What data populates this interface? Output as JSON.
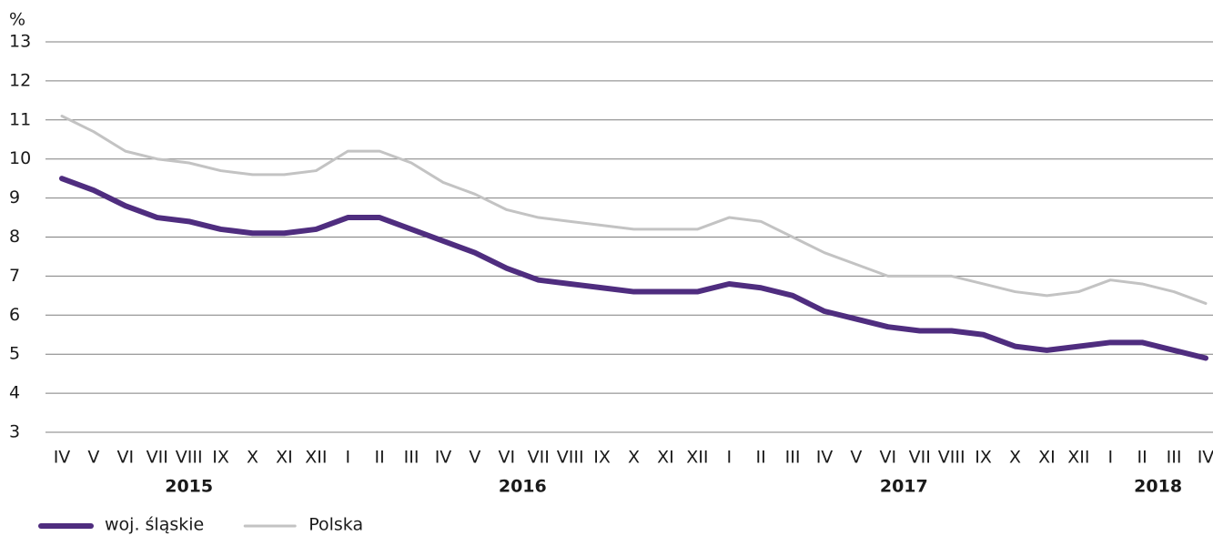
{
  "chart_data": {
    "type": "line",
    "y_unit": "%",
    "categories": [
      "IV",
      "V",
      "VI",
      "VII",
      "VIII",
      "IX",
      "X",
      "XI",
      "XII",
      "I",
      "II",
      "III",
      "IV",
      "V",
      "VI",
      "VII",
      "VIII",
      "IX",
      "X",
      "XI",
      "XII",
      "I",
      "II",
      "III",
      "IV",
      "V",
      "VI",
      "VII",
      "VIII",
      "IX",
      "X",
      "XI",
      "XII",
      "I",
      "II",
      "III",
      "IV"
    ],
    "year_labels": [
      "2015",
      "2016",
      "2017",
      "2018"
    ],
    "series": [
      {
        "name": "woj. śląskie",
        "color": "#4f2d7f",
        "width": 6,
        "values": [
          9.5,
          9.2,
          8.8,
          8.5,
          8.4,
          8.2,
          8.1,
          8.1,
          8.2,
          8.5,
          8.5,
          8.2,
          7.9,
          7.6,
          7.2,
          6.9,
          6.8,
          6.7,
          6.6,
          6.6,
          6.6,
          6.8,
          6.7,
          6.5,
          6.1,
          5.9,
          5.7,
          5.6,
          5.6,
          5.5,
          5.2,
          5.1,
          5.2,
          5.3,
          5.3,
          5.1,
          4.9
        ]
      },
      {
        "name": "Polska",
        "color": "#c3c3c3",
        "width": 3,
        "values": [
          11.1,
          10.7,
          10.2,
          10.0,
          9.9,
          9.7,
          9.6,
          9.6,
          9.7,
          10.2,
          10.2,
          9.9,
          9.4,
          9.1,
          8.7,
          8.5,
          8.4,
          8.3,
          8.2,
          8.2,
          8.2,
          8.5,
          8.4,
          8.0,
          7.6,
          7.3,
          7.0,
          7.0,
          7.0,
          6.8,
          6.6,
          6.5,
          6.6,
          6.9,
          6.8,
          6.6,
          6.3
        ]
      }
    ],
    "ylim": [
      3,
      13
    ],
    "yticks": [
      3,
      4,
      5,
      6,
      7,
      8,
      9,
      10,
      11,
      12,
      13
    ],
    "grid": true
  }
}
